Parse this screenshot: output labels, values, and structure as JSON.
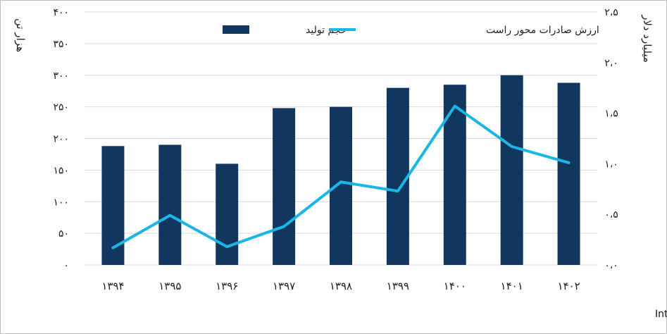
{
  "chart_data": {
    "type": "bar",
    "categories": [
      "۱۳۹۴",
      "۱۳۹۵",
      "۱۳۹۶",
      "۱۳۹۷",
      "۱۳۹۸",
      "۱۳۹۹",
      "۱۴۰۰",
      "۱۴۰۱",
      "۱۴۰۲"
    ],
    "series": [
      {
        "name": "حجم تولید",
        "type": "bar",
        "axis": "left",
        "color": "#12375f",
        "values": [
          188,
          190,
          160,
          248,
          250,
          280,
          285,
          300,
          288
        ]
      },
      {
        "name": "ارزش صادرات  محور راست",
        "type": "line",
        "axis": "right",
        "color": "#1ab6e8",
        "values": [
          0.17,
          0.49,
          0.18,
          0.38,
          0.82,
          0.73,
          1.57,
          1.17,
          1.01
        ]
      }
    ],
    "ylabel_left": "هزار تن",
    "ylabel_right": "میلیارد دلار",
    "ylim_left": [
      0,
      400
    ],
    "ylim_right": [
      0,
      2.5
    ],
    "yticks_left": [
      "۰",
      "۵۰",
      "۱۰۰",
      "۱۵۰",
      "۲۰۰",
      "۲۵۰",
      "۳۰۰",
      "۳۵۰",
      "۴۰۰"
    ],
    "yticks_right": [
      "۰،۰",
      "۰،۵",
      "۱،۰",
      "۱،۵",
      "۲،۰",
      "۲،۵"
    ],
    "grid": true,
    "legend_position": "top-center",
    "source": "منبع: ایمیدرو، International Trade Centre"
  }
}
